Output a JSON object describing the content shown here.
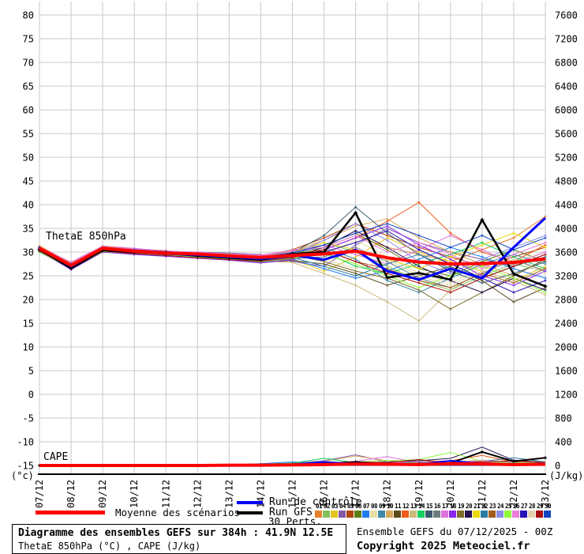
{
  "chart": {
    "thetae_label": "ThetaE 850hPa",
    "cape_label": "CAPE",
    "left_unit": "(°c)",
    "right_unit": "(J/kg)"
  },
  "chart_data": {
    "type": "line",
    "title": "Diagramme des ensembles GEFS sur 384h : 41.9N 12.5E",
    "subtitle": "ThetaE 850hPa (°C) , CAPE (J/kg)",
    "x_labels": [
      "07/12",
      "08/12",
      "09/12",
      "10/12",
      "11/12",
      "12/12",
      "13/12",
      "14/12",
      "15/12",
      "16/12",
      "17/12",
      "18/12",
      "19/12",
      "20/12",
      "21/12",
      "22/12",
      "23/12"
    ],
    "left_axis": {
      "label": "(°c)",
      "min": -15,
      "max": 80,
      "step": 5
    },
    "right_axis": {
      "label": "(J/kg)",
      "min": 0,
      "max": 7600,
      "step": 400
    },
    "grid": true,
    "legend_position": "bottom",
    "cape_default": 0,
    "mean": {
      "name": "Moyenne des scénarios",
      "color": "#FF0000",
      "thetae": [
        30.8,
        27.2,
        30.8,
        30.2,
        29.8,
        29.6,
        29.2,
        28.9,
        29.3,
        29.6,
        30.2,
        28.8,
        27.9,
        27.5,
        27.6,
        27.8,
        28.6
      ],
      "cape": [
        0,
        0,
        0,
        0,
        0,
        0,
        5,
        5,
        10,
        15,
        25,
        20,
        15,
        30,
        25,
        15,
        20
      ]
    },
    "control": {
      "name": "Run de contrôle",
      "color": "#0000FF",
      "thetae": [
        30.9,
        27.0,
        30.9,
        30.1,
        29.7,
        29.4,
        29.0,
        28.6,
        29.4,
        28.4,
        30.5,
        26.0,
        24.2,
        26.5,
        24.5,
        31.0,
        37.2
      ],
      "cape": [
        0,
        0,
        0,
        0,
        0,
        0,
        0,
        10,
        20,
        60,
        30,
        10,
        20,
        80,
        30,
        20,
        40
      ]
    },
    "gfs": {
      "name": "Run GFS",
      "color": "#000000",
      "thetae": [
        30.6,
        26.6,
        30.4,
        30.0,
        29.8,
        29.2,
        28.8,
        28.4,
        29.6,
        30.0,
        38.3,
        24.6,
        25.6,
        24.2,
        36.8,
        25.4,
        22.8
      ],
      "cape": [
        0,
        0,
        0,
        0,
        0,
        0,
        0,
        10,
        20,
        30,
        60,
        20,
        30,
        40,
        230,
        70,
        130
      ]
    },
    "perts": [
      {
        "id": "01",
        "color": "#E8802A",
        "thetae": [
          31.2,
          27.5,
          31.0,
          30.5,
          30.0,
          29.8,
          29.0,
          28.0,
          29.0,
          31.0,
          33.5,
          31.0,
          29.5,
          28.0,
          30.5,
          33.0,
          37.5
        ]
      },
      {
        "id": "02",
        "color": "#84C05E",
        "thetae": [
          30.5,
          27.0,
          30.5,
          30.0,
          29.5,
          29.0,
          28.5,
          28.5,
          30.0,
          32.0,
          30.0,
          27.0,
          24.0,
          22.0,
          25.0,
          27.5,
          26.0
        ],
        "cape": [
          0,
          0,
          0,
          0,
          0,
          0,
          0,
          0,
          20,
          40,
          60,
          30,
          90,
          40,
          20,
          30,
          50
        ]
      },
      {
        "id": "03",
        "color": "#E6C41E",
        "thetae": [
          30.2,
          26.8,
          30.8,
          30.3,
          29.6,
          29.2,
          29.5,
          28.0,
          28.5,
          26.0,
          29.0,
          33.0,
          30.0,
          28.0,
          26.0,
          24.0,
          27.0
        ]
      },
      {
        "id": "04",
        "color": "#8159A8",
        "thetae": [
          31.0,
          27.8,
          31.2,
          30.0,
          29.5,
          30.0,
          29.8,
          29.5,
          28.0,
          27.0,
          31.5,
          35.0,
          32.0,
          30.0,
          28.5,
          27.0,
          29.5
        ],
        "cape": [
          0,
          0,
          0,
          0,
          0,
          0,
          0,
          20,
          40,
          80,
          180,
          60,
          30,
          50,
          70,
          40,
          60
        ]
      },
      {
        "id": "05",
        "color": "#B4430F",
        "thetae": [
          30.8,
          27.2,
          30.6,
          30.4,
          30.2,
          29.4,
          28.6,
          29.0,
          30.5,
          33.0,
          36.0,
          33.5,
          31.0,
          29.0,
          27.0,
          29.0,
          31.0
        ]
      },
      {
        "id": "06",
        "color": "#5D7F12",
        "thetae": [
          30.4,
          26.5,
          30.2,
          29.8,
          29.4,
          29.0,
          28.8,
          28.2,
          29.5,
          31.5,
          34.0,
          30.5,
          26.5,
          25.0,
          28.0,
          30.5,
          28.0
        ]
      },
      {
        "id": "07",
        "color": "#1D7DEE",
        "thetae": [
          31.1,
          27.4,
          31.0,
          30.6,
          30.0,
          29.6,
          29.2,
          28.8,
          28.5,
          26.5,
          24.5,
          26.0,
          28.5,
          31.0,
          29.0,
          26.5,
          24.5
        ],
        "cape": [
          0,
          0,
          0,
          0,
          0,
          0,
          10,
          30,
          60,
          40,
          20,
          50,
          30,
          60,
          40,
          80,
          50
        ]
      },
      {
        "id": "08",
        "color": "#E7DDA4",
        "thetae": [
          30.3,
          26.9,
          30.4,
          30.1,
          29.7,
          29.3,
          28.9,
          28.3,
          28.8,
          29.5,
          32.5,
          29.0,
          25.5,
          23.5,
          26.5,
          28.0,
          30.0
        ]
      },
      {
        "id": "09",
        "color": "#3F89A8",
        "thetae": [
          30.7,
          27.1,
          30.7,
          30.2,
          29.9,
          29.5,
          29.1,
          28.6,
          29.8,
          31.0,
          28.5,
          24.0,
          21.5,
          24.5,
          27.5,
          29.5,
          27.5
        ]
      },
      {
        "id": "10",
        "color": "#D9A959",
        "thetae": [
          30.9,
          27.6,
          31.1,
          30.4,
          30.1,
          29.9,
          29.4,
          29.2,
          30.2,
          32.5,
          35.5,
          37.0,
          33.0,
          30.0,
          27.5,
          25.0,
          28.5
        ],
        "cape": [
          0,
          0,
          0,
          0,
          0,
          0,
          0,
          10,
          30,
          70,
          160,
          80,
          40,
          60,
          90,
          50,
          70
        ]
      },
      {
        "id": "11",
        "color": "#5B4B1B",
        "thetae": [
          30.1,
          26.4,
          30.0,
          29.6,
          29.2,
          28.8,
          28.4,
          27.8,
          28.2,
          27.5,
          25.5,
          23.0,
          25.0,
          27.0,
          24.0,
          19.5,
          22.5
        ]
      },
      {
        "id": "12",
        "color": "#EE5A19",
        "thetae": [
          31.3,
          27.7,
          31.2,
          30.7,
          30.3,
          29.7,
          29.3,
          29.0,
          29.6,
          30.5,
          33.0,
          36.5,
          40.5,
          34.0,
          30.0,
          28.0,
          31.5
        ],
        "cape": [
          0,
          0,
          0,
          0,
          0,
          0,
          0,
          0,
          20,
          30,
          50,
          40,
          60,
          80,
          170,
          60,
          40
        ]
      },
      {
        "id": "13",
        "color": "#CDB97B",
        "thetae": [
          30.6,
          27.3,
          30.5,
          30.0,
          29.6,
          29.1,
          28.7,
          28.1,
          27.8,
          25.5,
          23.0,
          19.5,
          15.5,
          22.0,
          26.0,
          24.0,
          21.0
        ]
      },
      {
        "id": "14",
        "color": "#12CF61",
        "thetae": [
          30.0,
          26.7,
          30.3,
          29.9,
          29.5,
          29.2,
          28.6,
          28.4,
          29.2,
          30.0,
          27.0,
          25.5,
          27.5,
          29.5,
          32.0,
          29.0,
          26.5
        ],
        "cape": [
          0,
          0,
          0,
          0,
          0,
          0,
          0,
          20,
          40,
          120,
          50,
          30,
          60,
          40,
          80,
          50,
          30
        ]
      },
      {
        "id": "15",
        "color": "#3A5A6E",
        "thetae": [
          30.8,
          27.0,
          30.6,
          30.3,
          29.8,
          29.4,
          29.0,
          28.7,
          29.9,
          33.5,
          39.5,
          34.0,
          29.5,
          26.0,
          23.5,
          25.5,
          28.0
        ]
      },
      {
        "id": "16",
        "color": "#6E7E7E",
        "thetae": [
          30.4,
          26.6,
          30.1,
          29.7,
          29.3,
          29.0,
          28.5,
          27.9,
          28.6,
          29.0,
          31.0,
          28.0,
          24.5,
          22.5,
          25.5,
          28.5,
          26.0
        ]
      },
      {
        "id": "17",
        "color": "#E072E0",
        "thetae": [
          31.0,
          27.9,
          31.3,
          30.8,
          30.2,
          30.0,
          29.6,
          29.4,
          30.4,
          31.5,
          29.5,
          27.5,
          30.5,
          33.5,
          30.5,
          27.5,
          30.0
        ],
        "cape": [
          0,
          0,
          0,
          0,
          0,
          0,
          0,
          10,
          20,
          40,
          70,
          150,
          50,
          30,
          60,
          40,
          70
        ]
      },
      {
        "id": "18",
        "color": "#8A26EE",
        "thetae": [
          30.2,
          26.3,
          30.0,
          29.5,
          29.1,
          28.7,
          28.3,
          27.7,
          28.4,
          30.5,
          33.0,
          35.5,
          31.5,
          28.5,
          25.0,
          23.0,
          26.0
        ]
      },
      {
        "id": "19",
        "color": "#7F6D2B",
        "thetae": [
          30.7,
          27.2,
          30.8,
          30.1,
          29.7,
          29.5,
          29.2,
          28.9,
          29.4,
          28.0,
          26.0,
          24.5,
          22.0,
          18.0,
          21.5,
          25.0,
          28.5
        ]
      },
      {
        "id": "20",
        "color": "#251153",
        "thetae": [
          30.5,
          26.8,
          30.2,
          29.9,
          29.6,
          29.1,
          28.8,
          28.5,
          29.0,
          31.0,
          34.5,
          31.0,
          27.0,
          24.0,
          21.5,
          24.5,
          22.0
        ],
        "cape": [
          0,
          0,
          0,
          0,
          0,
          0,
          0,
          0,
          10,
          20,
          40,
          60,
          80,
          120,
          310,
          90,
          50
        ]
      },
      {
        "id": "21",
        "color": "#EAD90A",
        "thetae": [
          31.2,
          27.6,
          31.1,
          30.5,
          30.0,
          29.8,
          29.5,
          29.1,
          30.0,
          32.0,
          30.5,
          28.5,
          26.5,
          29.0,
          31.5,
          34.0,
          31.0
        ]
      },
      {
        "id": "22",
        "color": "#2A7BA5",
        "thetae": [
          30.3,
          26.5,
          30.4,
          30.0,
          29.4,
          29.0,
          28.6,
          28.2,
          28.9,
          27.0,
          25.0,
          27.5,
          29.5,
          26.5,
          24.5,
          27.0,
          29.0
        ],
        "cape": [
          0,
          0,
          0,
          0,
          0,
          0,
          0,
          10,
          30,
          50,
          40,
          60,
          30,
          50,
          70,
          130,
          60
        ]
      },
      {
        "id": "23",
        "color": "#A35B1D",
        "thetae": [
          30.9,
          27.4,
          30.9,
          30.4,
          30.0,
          29.6,
          29.3,
          28.8,
          29.7,
          30.5,
          28.0,
          26.5,
          24.0,
          22.5,
          25.5,
          23.5,
          26.5
        ]
      },
      {
        "id": "24",
        "color": "#8B8BE9",
        "thetae": [
          30.6,
          27.0,
          30.5,
          30.2,
          29.8,
          29.3,
          28.9,
          28.6,
          29.5,
          32.5,
          36.0,
          32.5,
          28.0,
          25.5,
          28.5,
          31.0,
          33.5
        ]
      },
      {
        "id": "25",
        "color": "#8DF939",
        "thetae": [
          30.1,
          26.6,
          30.1,
          29.8,
          29.4,
          28.9,
          28.5,
          28.0,
          28.7,
          29.5,
          27.5,
          25.0,
          22.5,
          25.0,
          27.0,
          24.5,
          21.5
        ],
        "cape": [
          0,
          0,
          0,
          0,
          0,
          0,
          0,
          20,
          30,
          40,
          60,
          80,
          100,
          220,
          70,
          40,
          60
        ]
      },
      {
        "id": "26",
        "color": "#E97DDB",
        "thetae": [
          31.1,
          27.8,
          31.0,
          30.6,
          30.1,
          29.9,
          29.4,
          29.2,
          30.1,
          31.0,
          33.5,
          30.0,
          32.0,
          29.5,
          26.5,
          29.5,
          32.0
        ],
        "cape": [
          0,
          0,
          0,
          0,
          0,
          0,
          0,
          0,
          20,
          30,
          50,
          40,
          70,
          50,
          80,
          60,
          140
        ]
      },
      {
        "id": "27",
        "color": "#2511B5",
        "thetae": [
          30.4,
          26.9,
          30.3,
          30.0,
          29.5,
          29.2,
          28.8,
          28.3,
          29.1,
          30.0,
          32.0,
          34.5,
          30.5,
          27.5,
          24.5,
          21.5,
          24.0
        ]
      },
      {
        "id": "28",
        "color": "#E3D3AD",
        "thetae": [
          30.8,
          27.3,
          30.7,
          30.3,
          29.9,
          29.5,
          29.1,
          28.7,
          29.6,
          28.5,
          26.5,
          28.5,
          25.0,
          23.0,
          26.0,
          28.5,
          25.5
        ]
      },
      {
        "id": "29",
        "color": "#A90F0F",
        "thetae": [
          30.2,
          26.7,
          30.2,
          29.7,
          29.3,
          28.8,
          28.4,
          28.1,
          28.8,
          30.5,
          28.0,
          25.5,
          23.5,
          21.5,
          24.5,
          27.0,
          29.5
        ],
        "cape": [
          0,
          0,
          0,
          0,
          0,
          0,
          0,
          10,
          20,
          40,
          60,
          50,
          100,
          40,
          60,
          80,
          50
        ]
      },
      {
        "id": "30",
        "color": "#1345C5",
        "thetae": [
          31.0,
          27.5,
          30.9,
          30.5,
          30.1,
          29.7,
          29.3,
          29.0,
          29.9,
          31.5,
          34.0,
          36.0,
          33.5,
          31.0,
          33.5,
          30.5,
          33.0
        ]
      }
    ]
  },
  "legend": {
    "mean_label": "Moyenne des scénarios",
    "control_label": "Run de contrôle",
    "gfs_label": "Run GFS",
    "perts_label": "30 Perts.",
    "mean_color": "#FF0000",
    "control_color": "#0000FF",
    "gfs_color": "#000000"
  },
  "footer": {
    "box_title": "Diagramme des ensembles GEFS sur 384h : 41.9N 12.5E",
    "box_subtitle": "ThetaE 850hPa (°C) , CAPE (J/kg)",
    "run_info": "Ensemble GEFS du 07/12/2025 - 00Z",
    "copyright": "Copyright 2025 Meteociel.fr"
  }
}
